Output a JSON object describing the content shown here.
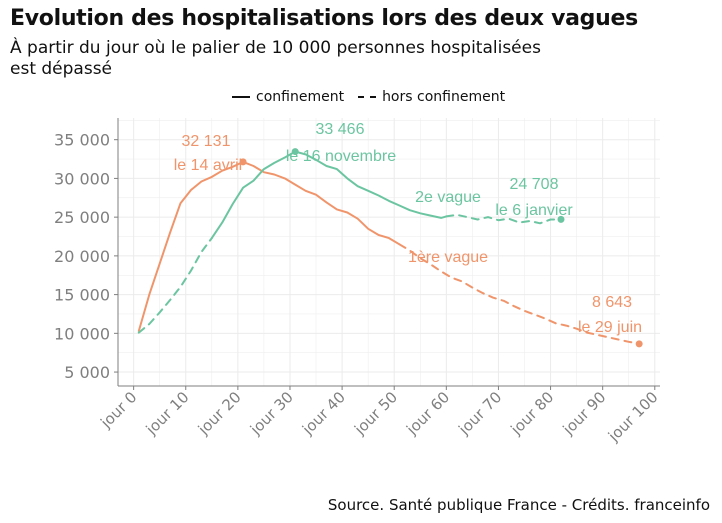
{
  "header": {
    "title": "Evolution des hospitalisations lors des deux vagues",
    "subtitle": "À partir du jour où le palier de 10 000 personnes hospitalisées est dépassé"
  },
  "legend": {
    "solid_label": "confinement",
    "dashed_label": "hors confinement",
    "placement": "top"
  },
  "source": "Source. Santé publique France - Crédits. franceinfo",
  "colors": {
    "vague1": "#f0956b",
    "vague2": "#6cc5a1",
    "axis": "#7f7f7f",
    "grid": "#ebebeb"
  },
  "chart_data": {
    "type": "line",
    "x_unit": "jour",
    "x_ticks": [
      0,
      10,
      20,
      30,
      40,
      50,
      60,
      70,
      80,
      90,
      100
    ],
    "x_tick_labels": [
      "jour 0",
      "jour 10",
      "jour 20",
      "jour 30",
      "jour 40",
      "jour 50",
      "jour 60",
      "jour 70",
      "jour 80",
      "jour 90",
      "jour 100"
    ],
    "y_ticks": [
      5000,
      10000,
      15000,
      20000,
      25000,
      30000,
      35000
    ],
    "y_tick_labels": [
      "5 000",
      "10 000",
      "15 000",
      "20 000",
      "25 000",
      "30 000",
      "35 000"
    ],
    "xlim": [
      -3,
      101
    ],
    "ylim": [
      3200,
      37800
    ],
    "grid": true,
    "series": [
      {
        "name": "1ère vague",
        "color": "#f0956b",
        "segments": [
          {
            "style": "confinement",
            "points": [
              [
                1,
                10300
              ],
              [
                3,
                15000
              ],
              [
                5,
                19000
              ],
              [
                7,
                23000
              ],
              [
                9,
                26800
              ],
              [
                11,
                28500
              ],
              [
                13,
                29600
              ],
              [
                15,
                30200
              ],
              [
                17,
                31000
              ],
              [
                19,
                31500
              ],
              [
                21,
                32131
              ],
              [
                23,
                31600
              ],
              [
                25,
                30800
              ],
              [
                27,
                30500
              ],
              [
                29,
                30000
              ],
              [
                31,
                29200
              ],
              [
                33,
                28400
              ],
              [
                35,
                27900
              ],
              [
                37,
                26900
              ],
              [
                39,
                26000
              ],
              [
                41,
                25600
              ],
              [
                43,
                24800
              ],
              [
                45,
                23500
              ],
              [
                47,
                22700
              ],
              [
                49,
                22300
              ],
              [
                51,
                21500
              ]
            ]
          },
          {
            "style": "hors confinement",
            "points": [
              [
                51,
                21500
              ],
              [
                53,
                20700
              ],
              [
                55,
                19700
              ],
              [
                57,
                18900
              ],
              [
                59,
                18000
              ],
              [
                61,
                17200
              ],
              [
                63,
                16700
              ],
              [
                65,
                15900
              ],
              [
                67,
                15200
              ],
              [
                69,
                14600
              ],
              [
                71,
                14200
              ],
              [
                73,
                13500
              ],
              [
                75,
                12900
              ],
              [
                77,
                12400
              ],
              [
                79,
                11900
              ],
              [
                81,
                11300
              ],
              [
                83,
                11000
              ],
              [
                85,
                10600
              ],
              [
                87,
                10100
              ],
              [
                89,
                9800
              ],
              [
                91,
                9500
              ],
              [
                93,
                9200
              ],
              [
                95,
                8900
              ],
              [
                97,
                8643
              ]
            ]
          }
        ]
      },
      {
        "name": "2e vague",
        "color": "#6cc5a1",
        "segments": [
          {
            "style": "hors confinement",
            "points": [
              [
                1,
                10100
              ],
              [
                3,
                11200
              ],
              [
                5,
                12700
              ],
              [
                7,
                14300
              ],
              [
                9,
                16000
              ],
              [
                11,
                18100
              ],
              [
                13,
                20500
              ],
              [
                15,
                22300
              ]
            ]
          },
          {
            "style": "confinement",
            "points": [
              [
                15,
                22300
              ],
              [
                17,
                24300
              ],
              [
                19,
                26700
              ],
              [
                21,
                28800
              ],
              [
                23,
                29700
              ],
              [
                25,
                31200
              ],
              [
                27,
                32000
              ],
              [
                29,
                32700
              ],
              [
                31,
                33466
              ],
              [
                33,
                33100
              ],
              [
                35,
                32400
              ],
              [
                37,
                31600
              ],
              [
                39,
                31200
              ],
              [
                41,
                30000
              ],
              [
                43,
                29000
              ],
              [
                45,
                28400
              ],
              [
                47,
                27800
              ],
              [
                49,
                27100
              ],
              [
                51,
                26500
              ],
              [
                53,
                25900
              ],
              [
                55,
                25500
              ],
              [
                57,
                25200
              ],
              [
                59,
                24900
              ],
              [
                60,
                25100
              ]
            ]
          },
          {
            "style": "hors confinement",
            "points": [
              [
                60,
                25100
              ],
              [
                62,
                25300
              ],
              [
                64,
                25000
              ],
              [
                66,
                24700
              ],
              [
                68,
                25000
              ],
              [
                70,
                24600
              ],
              [
                72,
                24800
              ],
              [
                74,
                24300
              ],
              [
                76,
                24500
              ],
              [
                78,
                24200
              ],
              [
                80,
                24700
              ],
              [
                82,
                24708
              ]
            ]
          }
        ]
      }
    ],
    "annotations": [
      {
        "value": "32 131",
        "date": "le 14 avril",
        "series": "1ère vague",
        "x": 21,
        "y": 32131
      },
      {
        "value": "33 466",
        "date": "le 16 novembre",
        "series": "2e vague",
        "x": 31,
        "y": 33466
      },
      {
        "value": "24 708",
        "date": "le 6 janvier",
        "series": "2e vague",
        "x": 82,
        "y": 24708
      },
      {
        "value": "8 643",
        "date": "le 29 juin",
        "series": "1ère vague",
        "x": 97,
        "y": 8643
      },
      {
        "label": "2e vague",
        "series": "2e vague"
      },
      {
        "label": "1ère vague",
        "series": "1ère vague"
      }
    ]
  }
}
